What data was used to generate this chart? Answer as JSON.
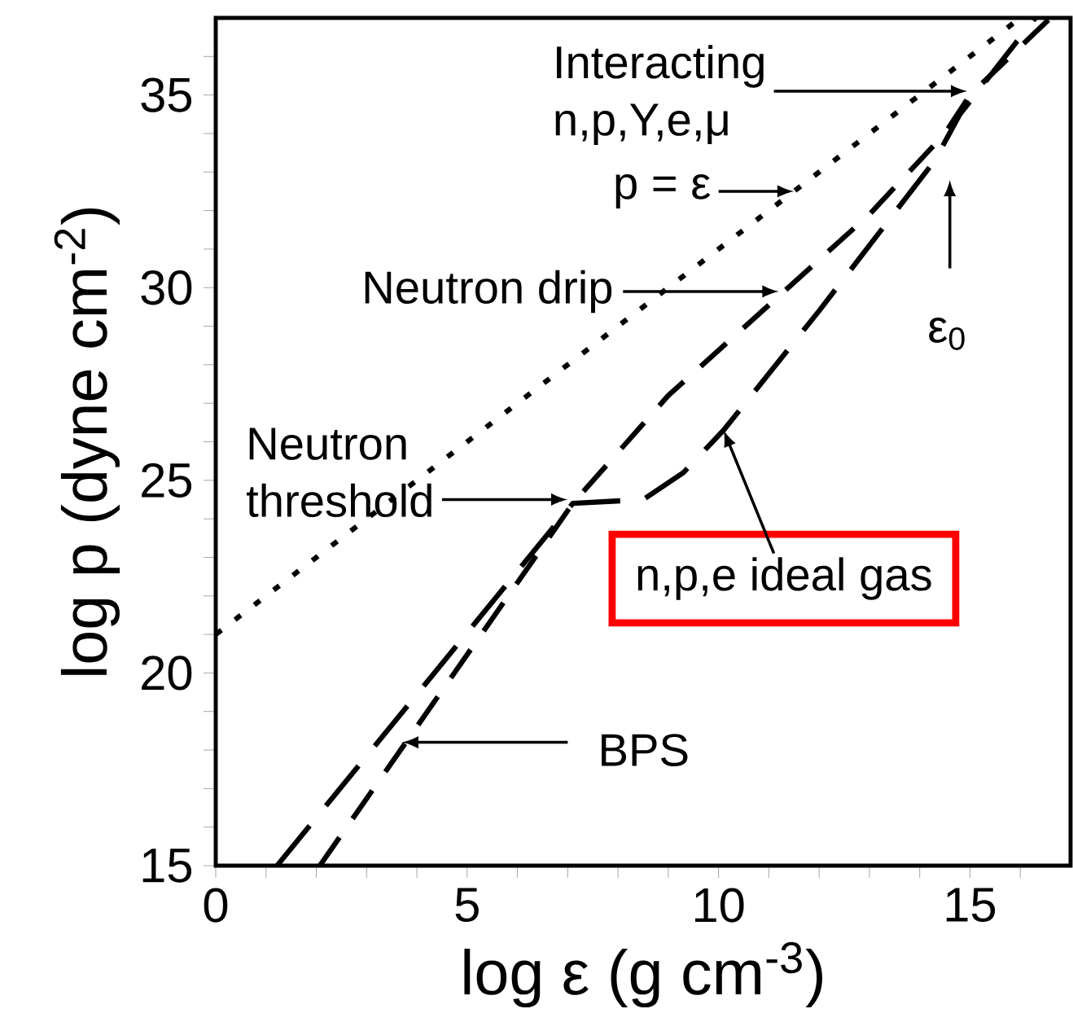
{
  "chart_data": {
    "type": "line",
    "xlabel": "log ε (g cm$^{-3}$)",
    "ylabel": "log p (dyne cm$^{-2}$)",
    "xlim": [
      0,
      17
    ],
    "ylim": [
      15,
      37
    ],
    "xticks": [
      0,
      {
        "value": 1,
        "label": null
      },
      {
        "value": 2,
        "label": null
      },
      {
        "value": 3,
        "label": null
      },
      {
        "value": 4,
        "label": null
      },
      5,
      {
        "value": 6,
        "label": null
      },
      {
        "value": 7,
        "label": null
      },
      {
        "value": 8,
        "label": null
      },
      {
        "value": 9,
        "label": null
      },
      10,
      {
        "value": 11,
        "label": null
      },
      {
        "value": 12,
        "label": null
      },
      {
        "value": 13,
        "label": null
      },
      {
        "value": 14,
        "label": null
      },
      15,
      {
        "value": 16,
        "label": null
      }
    ],
    "yticks": [
      15,
      {
        "value": 16,
        "label": null
      },
      {
        "value": 17,
        "label": null
      },
      {
        "value": 18,
        "label": null
      },
      {
        "value": 19,
        "label": null
      },
      20,
      {
        "value": 21,
        "label": null
      },
      {
        "value": 22,
        "label": null
      },
      {
        "value": 23,
        "label": null
      },
      {
        "value": 24,
        "label": null
      },
      25,
      {
        "value": 26,
        "label": null
      },
      {
        "value": 27,
        "label": null
      },
      {
        "value": 28,
        "label": null
      },
      {
        "value": 29,
        "label": null
      },
      30,
      {
        "value": 31,
        "label": null
      },
      {
        "value": 32,
        "label": null
      },
      {
        "value": 33,
        "label": null
      },
      {
        "value": 34,
        "label": null
      },
      35,
      {
        "value": 36,
        "label": null
      }
    ],
    "grid": false,
    "marker": "none",
    "series": [
      {
        "x": [
          0,
          16
        ],
        "values": [
          21,
          37
        ],
        "color": "#000000",
        "line_style": "dotted"
      },
      {
        "x": [
          1.22,
          7.1,
          8.5,
          9.3,
          10.1,
          12,
          14.3,
          14.8,
          16.3
        ],
        "values": [
          15,
          24.4,
          24.5,
          25.2,
          26.3,
          29.4,
          33.3,
          34.5,
          37
        ],
        "color": "#000000",
        "line_style": "dashed"
      },
      {
        "x": [
          2.07,
          7.1,
          9,
          11.3,
          13,
          14.5,
          15,
          16.6
        ],
        "values": [
          15,
          24.4,
          27.2,
          29.9,
          31.9,
          34,
          35,
          37
        ],
        "color": "#000000",
        "line_style": "dashed"
      }
    ],
    "annotations": [
      "Interacting n,p,Y,e,μ",
      {
        "text": "p = ε",
        "x": 11.5,
        "y": 32.5
      },
      "Neutron drip",
      "Neutron threshold",
      {
        "text": "n,p,e ideal gas",
        "x": 10.1,
        "y": 26.3
      },
      "BPS",
      "ε$_{0}$"
    ]
  }
}
